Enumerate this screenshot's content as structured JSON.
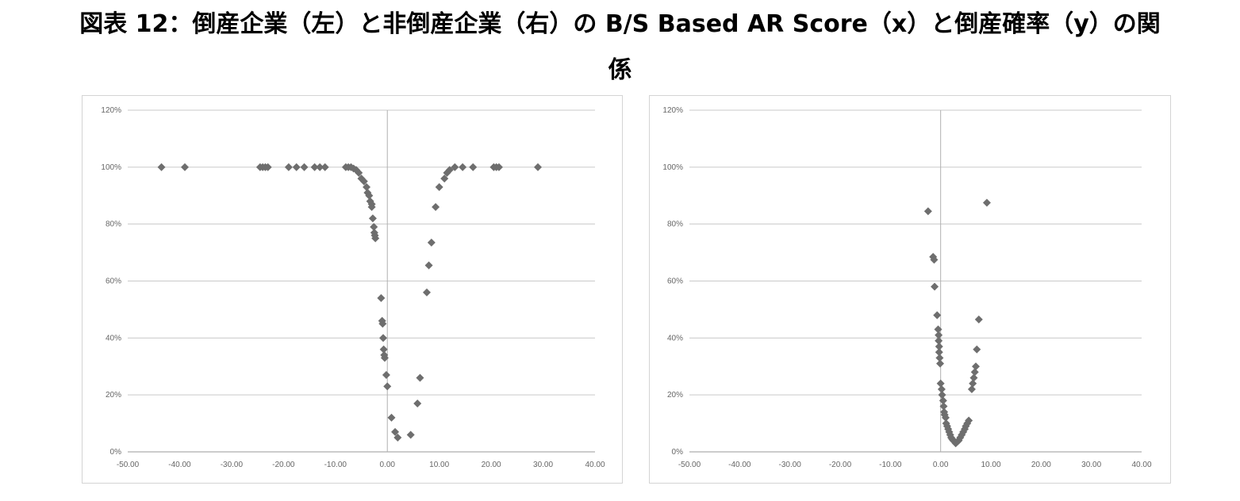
{
  "title": {
    "line1": "図表 12：倒産企業（左）と非倒産企業（右）の B/S Based AR Score（x）と倒産確率（y）の関",
    "line2": "係"
  },
  "chart_data": [
    {
      "type": "scatter",
      "xlim": [
        -50,
        40
      ],
      "ylim": [
        0,
        1.2
      ],
      "x_ticks": [
        "-50.00",
        "-40.00",
        "-30.00",
        "-20.00",
        "-10.00",
        "0.00",
        "10.00",
        "20.00",
        "30.00",
        "40.00"
      ],
      "y_ticks": [
        "0%",
        "20%",
        "40%",
        "60%",
        "80%",
        "100%",
        "120%"
      ],
      "grid": true,
      "marker": "diamond",
      "color": "#6e6e6e",
      "points": [
        [
          -43.5,
          1.0
        ],
        [
          -39.0,
          1.0
        ],
        [
          -24.5,
          1.0
        ],
        [
          -24.0,
          1.0
        ],
        [
          -23.5,
          1.0
        ],
        [
          -23.0,
          1.0
        ],
        [
          -19.0,
          1.0
        ],
        [
          -17.5,
          1.0
        ],
        [
          -16.0,
          1.0
        ],
        [
          -14.0,
          1.0
        ],
        [
          -13.0,
          1.0
        ],
        [
          -12.0,
          1.0
        ],
        [
          -8.0,
          1.0
        ],
        [
          -7.5,
          1.0
        ],
        [
          -7.0,
          1.0
        ],
        [
          -6.5,
          0.995
        ],
        [
          -6.0,
          0.99
        ],
        [
          -5.5,
          0.98
        ],
        [
          -5.0,
          0.96
        ],
        [
          -4.5,
          0.95
        ],
        [
          -4.0,
          0.93
        ],
        [
          -3.8,
          0.91
        ],
        [
          -3.5,
          0.9
        ],
        [
          -3.3,
          0.88
        ],
        [
          -3.0,
          0.87
        ],
        [
          -3.0,
          0.86
        ],
        [
          -2.8,
          0.82
        ],
        [
          -2.6,
          0.79
        ],
        [
          -2.5,
          0.77
        ],
        [
          -2.4,
          0.76
        ],
        [
          -2.3,
          0.75
        ],
        [
          -1.2,
          0.54
        ],
        [
          -1.0,
          0.46
        ],
        [
          -0.9,
          0.45
        ],
        [
          -0.8,
          0.4
        ],
        [
          -0.7,
          0.36
        ],
        [
          -0.6,
          0.34
        ],
        [
          -0.5,
          0.33
        ],
        [
          -0.2,
          0.27
        ],
        [
          0.0,
          0.23
        ],
        [
          0.8,
          0.12
        ],
        [
          1.5,
          0.07
        ],
        [
          2.0,
          0.05
        ],
        [
          4.5,
          0.06
        ],
        [
          5.8,
          0.17
        ],
        [
          6.3,
          0.26
        ],
        [
          7.6,
          0.56
        ],
        [
          8.0,
          0.655
        ],
        [
          8.5,
          0.735
        ],
        [
          9.3,
          0.86
        ],
        [
          10.0,
          0.93
        ],
        [
          11.0,
          0.96
        ],
        [
          11.5,
          0.98
        ],
        [
          12.0,
          0.99
        ],
        [
          13.0,
          1.0
        ],
        [
          14.5,
          1.0
        ],
        [
          16.5,
          1.0
        ],
        [
          20.5,
          1.0
        ],
        [
          21.0,
          1.0
        ],
        [
          21.5,
          1.0
        ],
        [
          29.0,
          1.0
        ]
      ]
    },
    {
      "type": "scatter",
      "xlim": [
        -50,
        40
      ],
      "ylim": [
        0,
        1.2
      ],
      "x_ticks": [
        "-50.00",
        "-40.00",
        "-30.00",
        "-20.00",
        "-10.00",
        "0.00",
        "10.00",
        "20.00",
        "30.00",
        "40.00"
      ],
      "y_ticks": [
        "0%",
        "20%",
        "40%",
        "60%",
        "80%",
        "100%",
        "120%"
      ],
      "grid": true,
      "marker": "diamond",
      "color": "#6e6e6e",
      "points": [
        [
          -2.5,
          0.845
        ],
        [
          -1.5,
          0.685
        ],
        [
          -1.3,
          0.675
        ],
        [
          -1.2,
          0.58
        ],
        [
          -0.7,
          0.48
        ],
        [
          -0.5,
          0.43
        ],
        [
          -0.4,
          0.41
        ],
        [
          -0.4,
          0.39
        ],
        [
          -0.3,
          0.37
        ],
        [
          -0.3,
          0.35
        ],
        [
          -0.2,
          0.33
        ],
        [
          -0.1,
          0.31
        ],
        [
          0.0,
          0.24
        ],
        [
          0.2,
          0.22
        ],
        [
          0.3,
          0.2
        ],
        [
          0.5,
          0.18
        ],
        [
          0.6,
          0.16
        ],
        [
          0.7,
          0.14
        ],
        [
          0.8,
          0.13
        ],
        [
          1.0,
          0.12
        ],
        [
          1.1,
          0.1
        ],
        [
          1.3,
          0.09
        ],
        [
          1.5,
          0.08
        ],
        [
          1.7,
          0.07
        ],
        [
          1.9,
          0.06
        ],
        [
          2.1,
          0.05
        ],
        [
          2.3,
          0.045
        ],
        [
          2.5,
          0.04
        ],
        [
          2.8,
          0.035
        ],
        [
          3.0,
          0.03
        ],
        [
          3.3,
          0.035
        ],
        [
          3.6,
          0.04
        ],
        [
          3.9,
          0.05
        ],
        [
          4.2,
          0.06
        ],
        [
          4.5,
          0.07
        ],
        [
          4.8,
          0.08
        ],
        [
          5.0,
          0.09
        ],
        [
          5.3,
          0.1
        ],
        [
          5.6,
          0.11
        ],
        [
          6.2,
          0.22
        ],
        [
          6.4,
          0.24
        ],
        [
          6.6,
          0.26
        ],
        [
          6.8,
          0.28
        ],
        [
          7.0,
          0.3
        ],
        [
          7.2,
          0.36
        ],
        [
          7.6,
          0.465
        ],
        [
          9.2,
          0.875
        ]
      ]
    }
  ]
}
